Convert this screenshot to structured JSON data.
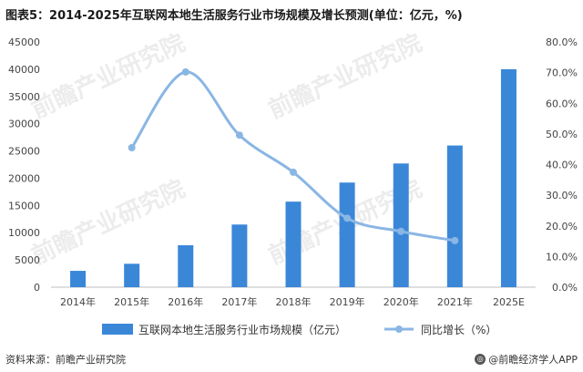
{
  "title": "图表5：2014-2025年互联网本地生活服务行业市场规模及增长预测(单位：亿元，%)",
  "source": "资料来源：前瞻产业研究院",
  "brand": "@前瞻经济学人APP",
  "watermark": "前瞻产业研究院",
  "colors": {
    "bar": "#3a87d8",
    "line": "#8ab6e4",
    "axis": "#bfbfbf"
  },
  "chart_data": {
    "type": "bar",
    "categories": [
      "2014年",
      "2015年",
      "2016年",
      "2017年",
      "2018年",
      "2019年",
      "2020年",
      "2021年",
      "2025E"
    ],
    "series": [
      {
        "name": "互联网本地生活服务行业市场规模（亿元）",
        "type": "bar",
        "axis": "left",
        "values": [
          3000,
          4300,
          7700,
          11500,
          15700,
          19200,
          22700,
          26000,
          40000
        ]
      },
      {
        "name": "同比增长（%）",
        "type": "line",
        "axis": "right",
        "values": [
          null,
          45.5,
          70.2,
          49.6,
          37.5,
          22.5,
          18.2,
          15.2,
          null
        ]
      }
    ],
    "ylim_left": [
      0,
      45000
    ],
    "yticks_left": [
      "0",
      "5000",
      "10000",
      "15000",
      "20000",
      "25000",
      "30000",
      "35000",
      "40000",
      "45000"
    ],
    "ylim_right": [
      0,
      80
    ],
    "yticks_right": [
      "0.0%",
      "10.0%",
      "20.0%",
      "30.0%",
      "40.0%",
      "50.0%",
      "60.0%",
      "70.0%",
      "80.0%"
    ],
    "legend_position": "bottom"
  }
}
